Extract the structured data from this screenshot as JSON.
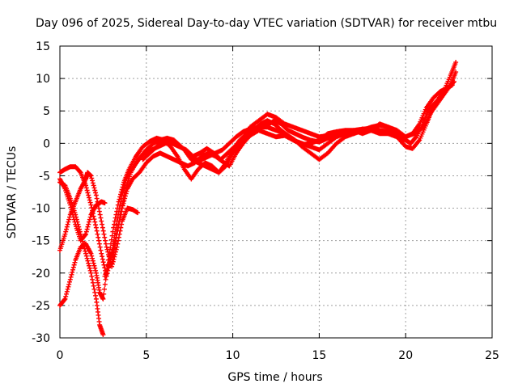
{
  "chart_data": {
    "type": "scatter",
    "title": "Day 096 of 2025, Sidereal Day-to-day VTEC variation (SDTVAR) for receiver mtbu",
    "xlabel": "GPS time / hours",
    "ylabel": "SDTVAR / TECUs",
    "xlim": [
      0,
      25
    ],
    "ylim": [
      -30,
      15
    ],
    "x_ticks": [
      0,
      5,
      10,
      15,
      20,
      25
    ],
    "y_ticks": [
      -30,
      -25,
      -20,
      -15,
      -10,
      -5,
      0,
      5,
      10,
      15
    ],
    "grid": true,
    "legend": "none",
    "marker_color": "#ff0000",
    "marker": "plus",
    "series": [
      {
        "points": [
          [
            0.0,
            -4.5
          ],
          [
            0.3,
            -4.0
          ],
          [
            0.6,
            -3.6
          ],
          [
            0.9,
            -3.6
          ],
          [
            1.2,
            -4.5
          ],
          [
            1.5,
            -6.5
          ],
          [
            1.8,
            -9.5
          ],
          [
            2.1,
            -13
          ],
          [
            2.4,
            -17
          ],
          [
            2.7,
            -20.5
          ],
          [
            3.0,
            -17
          ],
          [
            3.3,
            -12
          ],
          [
            3.6,
            -8
          ],
          [
            3.9,
            -5
          ],
          [
            4.3,
            -3.5
          ],
          [
            4.7,
            -2
          ],
          [
            5.0,
            -1
          ],
          [
            5.4,
            0
          ],
          [
            5.8,
            0.5
          ],
          [
            6.2,
            0.8
          ],
          [
            6.6,
            0.5
          ],
          [
            7.0,
            -0.5
          ],
          [
            7.4,
            -1.5
          ],
          [
            7.8,
            -2.5
          ],
          [
            8.2,
            -2.5
          ],
          [
            8.6,
            -2
          ],
          [
            9.0,
            -1.5
          ],
          [
            9.4,
            -1
          ],
          [
            9.8,
            0
          ],
          [
            10.2,
            1
          ],
          [
            10.6,
            1.8
          ],
          [
            11.0,
            2.2
          ],
          [
            11.5,
            2.5
          ],
          [
            12.0,
            2.5
          ],
          [
            12.5,
            2.0
          ],
          [
            13.0,
            1.5
          ],
          [
            13.5,
            0.5
          ],
          [
            14.0,
            0
          ],
          [
            14.5,
            -0.5
          ],
          [
            15.0,
            -1
          ],
          [
            15.5,
            0
          ],
          [
            16.0,
            1
          ],
          [
            16.5,
            1.5
          ],
          [
            17.0,
            1.5
          ],
          [
            17.5,
            2
          ],
          [
            18.0,
            2.5
          ],
          [
            18.5,
            2.8
          ],
          [
            19.0,
            2.5
          ],
          [
            19.5,
            1.5
          ],
          [
            20.0,
            0.5
          ],
          [
            20.3,
            0
          ],
          [
            20.6,
            1
          ],
          [
            21.0,
            3
          ],
          [
            21.3,
            5
          ],
          [
            21.6,
            6
          ],
          [
            22.0,
            7
          ],
          [
            22.4,
            8.5
          ],
          [
            22.8,
            9.5
          ]
        ]
      },
      {
        "points": [
          [
            0.0,
            -6.0
          ],
          [
            0.3,
            -6.5
          ],
          [
            0.6,
            -8.5
          ],
          [
            0.9,
            -11
          ],
          [
            1.2,
            -14
          ],
          [
            1.5,
            -17
          ],
          [
            1.8,
            -20
          ],
          [
            2.1,
            -24
          ],
          [
            2.3,
            -28
          ],
          [
            2.5,
            -29.5
          ]
        ]
      },
      {
        "points": [
          [
            0.0,
            -16.5
          ],
          [
            0.3,
            -14
          ],
          [
            0.6,
            -11
          ],
          [
            0.9,
            -9
          ],
          [
            1.2,
            -7
          ],
          [
            1.5,
            -5.5
          ],
          [
            1.6,
            -4.5
          ],
          [
            1.8,
            -5
          ],
          [
            2.1,
            -8
          ],
          [
            2.4,
            -12
          ],
          [
            2.7,
            -16
          ],
          [
            3.0,
            -19
          ],
          [
            3.3,
            -16
          ],
          [
            3.6,
            -12
          ],
          [
            3.9,
            -10
          ],
          [
            4.2,
            -10.2
          ],
          [
            4.5,
            -10.7
          ]
        ]
      },
      {
        "points": [
          [
            0.0,
            -25
          ],
          [
            0.3,
            -24
          ],
          [
            0.6,
            -21
          ],
          [
            0.9,
            -18
          ],
          [
            1.2,
            -16
          ],
          [
            1.5,
            -15.5
          ],
          [
            1.8,
            -17
          ],
          [
            2.1,
            -20
          ],
          [
            2.3,
            -23
          ],
          [
            2.5,
            -24
          ],
          [
            2.8,
            -18
          ],
          [
            3.1,
            -13
          ],
          [
            3.4,
            -9
          ],
          [
            3.7,
            -6
          ],
          [
            4.0,
            -4
          ],
          [
            4.4,
            -2
          ],
          [
            4.8,
            -0.5
          ],
          [
            5.2,
            0.3
          ],
          [
            5.6,
            0.8
          ],
          [
            6.0,
            0.5
          ],
          [
            6.4,
            -0.5
          ],
          [
            6.8,
            -2
          ],
          [
            7.2,
            -4
          ],
          [
            7.6,
            -5.5
          ],
          [
            8.0,
            -4
          ],
          [
            8.4,
            -3
          ],
          [
            8.8,
            -3.5
          ],
          [
            9.2,
            -4.5
          ],
          [
            9.6,
            -3
          ],
          [
            10.0,
            -1
          ],
          [
            10.4,
            0.5
          ],
          [
            10.8,
            1.5
          ],
          [
            11.2,
            2
          ],
          [
            11.6,
            3
          ],
          [
            12.0,
            3.5
          ],
          [
            12.4,
            3
          ],
          [
            12.8,
            2
          ],
          [
            13.2,
            1.2
          ],
          [
            13.6,
            0.5
          ],
          [
            14.0,
            -0.5
          ],
          [
            14.5,
            -1.5
          ],
          [
            15.0,
            -2.5
          ],
          [
            15.5,
            -1.5
          ],
          [
            16.0,
            0
          ],
          [
            16.5,
            1
          ],
          [
            17.0,
            1.5
          ],
          [
            17.5,
            2
          ],
          [
            18.0,
            2
          ],
          [
            18.5,
            1.5
          ],
          [
            19.0,
            1.5
          ],
          [
            19.5,
            1
          ],
          [
            20.0,
            -0.5
          ],
          [
            20.4,
            -0.8
          ],
          [
            20.8,
            0.5
          ],
          [
            21.2,
            3
          ],
          [
            21.5,
            5
          ],
          [
            21.8,
            6.5
          ],
          [
            22.2,
            8
          ],
          [
            22.6,
            10.5
          ],
          [
            22.9,
            12.5
          ]
        ]
      },
      {
        "points": [
          [
            0.0,
            -5.5
          ],
          [
            0.3,
            -7
          ],
          [
            0.6,
            -9.5
          ],
          [
            0.9,
            -12.5
          ],
          [
            1.2,
            -15
          ],
          [
            1.5,
            -14
          ],
          [
            1.8,
            -11
          ],
          [
            2.1,
            -9.5
          ],
          [
            2.4,
            -9
          ],
          [
            2.6,
            -9.2
          ]
        ]
      },
      {
        "points": [
          [
            2.6,
            -20.5
          ],
          [
            2.9,
            -18
          ],
          [
            3.2,
            -15
          ],
          [
            3.5,
            -11
          ],
          [
            3.8,
            -7
          ],
          [
            4.1,
            -4.5
          ],
          [
            4.5,
            -2.5
          ],
          [
            4.9,
            -1.5
          ],
          [
            5.3,
            -1
          ],
          [
            5.7,
            -0.5
          ],
          [
            6.1,
            0
          ],
          [
            6.5,
            0
          ],
          [
            6.9,
            -0.5
          ],
          [
            7.3,
            -1
          ],
          [
            7.7,
            -2
          ],
          [
            8.1,
            -1.5
          ],
          [
            8.5,
            -0.8
          ],
          [
            8.9,
            -1.5
          ],
          [
            9.3,
            -2.5
          ],
          [
            9.7,
            -1.5
          ],
          [
            10.1,
            -0.5
          ],
          [
            10.5,
            -0.3
          ]
        ]
      },
      {
        "points": [
          [
            3.0,
            -18.5
          ],
          [
            3.3,
            -14
          ],
          [
            3.6,
            -10
          ],
          [
            3.9,
            -7
          ],
          [
            4.2,
            -5.5
          ],
          [
            4.6,
            -4.5
          ],
          [
            5.0,
            -3
          ],
          [
            5.4,
            -2
          ],
          [
            5.8,
            -1.5
          ],
          [
            6.2,
            -2
          ],
          [
            6.6,
            -2.5
          ],
          [
            7.0,
            -3
          ],
          [
            7.4,
            -3.5
          ],
          [
            7.8,
            -3
          ],
          [
            8.2,
            -2
          ],
          [
            8.6,
            -1.5
          ],
          [
            9.0,
            -2
          ],
          [
            9.4,
            -2.8
          ],
          [
            9.8,
            -3.5
          ],
          [
            10.2,
            -1.5
          ],
          [
            10.6,
            0
          ],
          [
            11.0,
            1.2
          ],
          [
            11.5,
            2
          ],
          [
            12.0,
            1.5
          ],
          [
            12.5,
            1
          ],
          [
            13.0,
            1.2
          ],
          [
            13.5,
            0.5
          ],
          [
            14.0,
            -0.2
          ],
          [
            14.5,
            0
          ],
          [
            15.0,
            0.5
          ],
          [
            15.5,
            1.5
          ],
          [
            16.0,
            1.8
          ],
          [
            16.5,
            2
          ],
          [
            17.0,
            2
          ],
          [
            17.5,
            1.5
          ],
          [
            18.0,
            2
          ],
          [
            18.5,
            3
          ],
          [
            19.0,
            2.5
          ],
          [
            19.5,
            2
          ],
          [
            20.0,
            1
          ],
          [
            20.4,
            1.5
          ],
          [
            20.8,
            3
          ],
          [
            21.2,
            5.5
          ],
          [
            21.6,
            7
          ],
          [
            22.0,
            8
          ],
          [
            22.4,
            8.5
          ],
          [
            22.7,
            9
          ]
        ]
      },
      {
        "points": [
          [
            4.8,
            -2.5
          ],
          [
            5.2,
            -1.5
          ],
          [
            5.6,
            -0.5
          ],
          [
            6.0,
            0.3
          ],
          [
            6.4,
            0.5
          ],
          [
            6.8,
            0
          ],
          [
            7.2,
            -1
          ],
          [
            7.6,
            -2.5
          ],
          [
            8.0,
            -3
          ],
          [
            8.4,
            -3.5
          ],
          [
            8.8,
            -4
          ],
          [
            9.2,
            -4.5
          ],
          [
            9.6,
            -3.5
          ],
          [
            10.0,
            -1.5
          ],
          [
            10.4,
            0
          ],
          [
            10.8,
            1.2
          ],
          [
            11.2,
            1.8
          ],
          [
            11.6,
            2.5
          ],
          [
            12.0,
            2.8
          ],
          [
            12.4,
            3.5
          ],
          [
            12.8,
            3
          ],
          [
            13.2,
            2
          ],
          [
            13.6,
            1.5
          ],
          [
            14.0,
            1
          ],
          [
            14.5,
            0.5
          ],
          [
            15.0,
            0.2
          ],
          [
            15.5,
            0.8
          ],
          [
            16.0,
            1.2
          ],
          [
            16.5,
            1.5
          ],
          [
            17.0,
            1.8
          ],
          [
            17.5,
            2.2
          ],
          [
            18.0,
            2.3
          ],
          [
            18.5,
            2
          ],
          [
            19.0,
            1.8
          ],
          [
            19.5,
            1.5
          ],
          [
            20.0,
            1
          ],
          [
            20.5,
            1.5
          ],
          [
            21.0,
            2.5
          ],
          [
            21.4,
            4.5
          ],
          [
            21.8,
            6
          ],
          [
            22.2,
            7.5
          ],
          [
            22.6,
            9
          ],
          [
            22.9,
            11
          ]
        ]
      },
      {
        "points": [
          [
            11.0,
            2.5
          ],
          [
            11.5,
            3.5
          ],
          [
            12.0,
            4.5
          ],
          [
            12.5,
            4
          ],
          [
            13.0,
            3
          ],
          [
            13.5,
            2.5
          ],
          [
            14.0,
            2
          ],
          [
            14.5,
            1.5
          ],
          [
            15.0,
            1
          ],
          [
            15.5,
            1.2
          ],
          [
            16.0,
            1.5
          ],
          [
            16.5,
            1.8
          ],
          [
            17.0,
            2
          ],
          [
            17.5,
            2.2
          ],
          [
            18.0,
            2
          ],
          [
            18.5,
            1.8
          ],
          [
            19.0,
            1.5
          ],
          [
            19.5,
            1
          ],
          [
            20.0,
            0.5
          ]
        ]
      }
    ]
  }
}
